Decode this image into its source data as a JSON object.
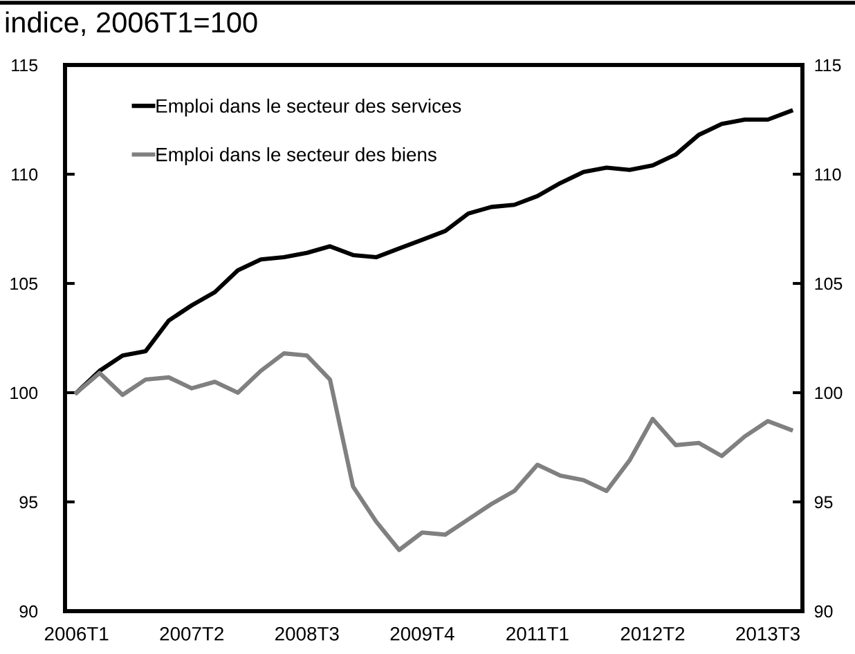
{
  "chart_data": {
    "type": "line",
    "title": "indice, 2006T1=100",
    "categories": [
      "2006T1",
      null,
      null,
      null,
      null,
      "2007T2",
      null,
      null,
      null,
      null,
      "2008T3",
      null,
      null,
      null,
      null,
      "2009T4",
      null,
      null,
      null,
      null,
      "2011T1",
      null,
      null,
      null,
      null,
      "2012T2",
      null,
      null,
      null,
      null,
      "2013T3",
      null
    ],
    "series": [
      {
        "name": "Emploi dans le secteur des services",
        "color": "#000000",
        "values": [
          100.0,
          101.0,
          101.7,
          101.9,
          103.3,
          104.0,
          104.6,
          105.6,
          106.1,
          106.2,
          106.4,
          106.7,
          106.3,
          106.2,
          106.6,
          107.0,
          107.4,
          108.2,
          108.5,
          108.6,
          109.0,
          109.6,
          110.1,
          110.3,
          110.2,
          110.4,
          110.9,
          111.8,
          112.3,
          112.5,
          112.5,
          112.9
        ]
      },
      {
        "name": "Emploi dans le secteur des biens",
        "color": "#808080",
        "values": [
          100.0,
          100.9,
          99.9,
          100.6,
          100.7,
          100.2,
          100.5,
          100.0,
          101.0,
          101.8,
          101.7,
          100.6,
          95.7,
          94.1,
          92.8,
          93.6,
          93.5,
          94.2,
          94.9,
          95.5,
          96.7,
          96.2,
          96.0,
          95.5,
          96.9,
          98.8,
          97.6,
          97.7,
          97.1,
          98.0,
          98.7,
          98.3
        ]
      }
    ],
    "ylim": [
      90,
      115
    ],
    "yticks": [
      90,
      95,
      100,
      105,
      110,
      115
    ],
    "y2lim": [
      90,
      115
    ],
    "y2ticks": [
      90,
      95,
      100,
      105,
      110,
      115
    ],
    "legend": "top left",
    "grid": false,
    "marker": "none",
    "line_style": "solid"
  }
}
